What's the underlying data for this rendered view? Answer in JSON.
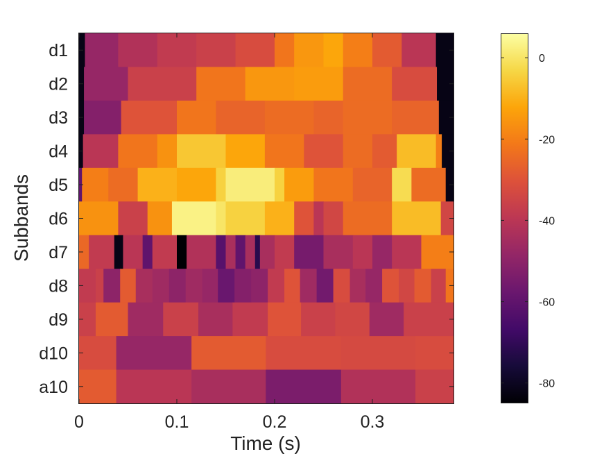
{
  "chart_data": {
    "type": "heatmap",
    "title": "",
    "xlabel": "Time (s)",
    "ylabel": "Subbands",
    "xlim": [
      0,
      0.383
    ],
    "x_ticks": [
      "0",
      "0.1",
      "0.2",
      "0.3"
    ],
    "x_tick_values": [
      0,
      0.1,
      0.2,
      0.3
    ],
    "subbands": [
      "d1",
      "d2",
      "d3",
      "d4",
      "d5",
      "d6",
      "d7",
      "d8",
      "d9",
      "d10",
      "a10"
    ],
    "colorbar": {
      "colormap": "inferno",
      "min": -85,
      "max": 6,
      "ticks": [
        "0",
        "-20",
        "-40",
        "-60",
        "-80"
      ],
      "tick_values": [
        0,
        -20,
        -40,
        -60,
        -80
      ]
    },
    "rows": {
      "d1": {
        "segments": [
          [
            0,
            0.006,
            -82
          ],
          [
            0.006,
            0.04,
            -48
          ],
          [
            0.04,
            0.08,
            -42
          ],
          [
            0.08,
            0.12,
            -38
          ],
          [
            0.12,
            0.16,
            -36
          ],
          [
            0.16,
            0.2,
            -32
          ],
          [
            0.2,
            0.22,
            -22
          ],
          [
            0.22,
            0.25,
            -15
          ],
          [
            0.25,
            0.27,
            -12
          ],
          [
            0.27,
            0.3,
            -20
          ],
          [
            0.3,
            0.33,
            -28
          ],
          [
            0.33,
            0.365,
            -40
          ],
          [
            0.365,
            0.383,
            -82
          ]
        ]
      },
      "d2": {
        "segments": [
          [
            0,
            0.005,
            -82
          ],
          [
            0.005,
            0.05,
            -48
          ],
          [
            0.05,
            0.12,
            -36
          ],
          [
            0.12,
            0.17,
            -22
          ],
          [
            0.17,
            0.22,
            -15
          ],
          [
            0.22,
            0.27,
            -14
          ],
          [
            0.27,
            0.32,
            -24
          ],
          [
            0.32,
            0.366,
            -32
          ],
          [
            0.366,
            0.383,
            -82
          ]
        ]
      },
      "d3": {
        "segments": [
          [
            0,
            0.005,
            -82
          ],
          [
            0.005,
            0.043,
            -52
          ],
          [
            0.043,
            0.1,
            -30
          ],
          [
            0.1,
            0.14,
            -22
          ],
          [
            0.14,
            0.19,
            -26
          ],
          [
            0.19,
            0.24,
            -24
          ],
          [
            0.24,
            0.27,
            -26
          ],
          [
            0.27,
            0.32,
            -24
          ],
          [
            0.32,
            0.368,
            -26
          ],
          [
            0.368,
            0.383,
            -82
          ]
        ]
      },
      "d4": {
        "segments": [
          [
            0,
            0.004,
            -82
          ],
          [
            0.004,
            0.04,
            -40
          ],
          [
            0.04,
            0.08,
            -22
          ],
          [
            0.08,
            0.1,
            -16
          ],
          [
            0.1,
            0.15,
            -6
          ],
          [
            0.15,
            0.19,
            -12
          ],
          [
            0.19,
            0.23,
            -22
          ],
          [
            0.23,
            0.27,
            -30
          ],
          [
            0.27,
            0.3,
            -24
          ],
          [
            0.3,
            0.325,
            -28
          ],
          [
            0.325,
            0.365,
            -8
          ],
          [
            0.365,
            0.371,
            -20
          ],
          [
            0.371,
            0.383,
            -82
          ]
        ]
      },
      "d5": {
        "segments": [
          [
            0,
            0.003,
            -60
          ],
          [
            0.003,
            0.03,
            -20
          ],
          [
            0.03,
            0.06,
            -24
          ],
          [
            0.06,
            0.1,
            -10
          ],
          [
            0.1,
            0.14,
            -12
          ],
          [
            0.14,
            0.15,
            -4
          ],
          [
            0.15,
            0.2,
            2
          ],
          [
            0.2,
            0.21,
            -4
          ],
          [
            0.21,
            0.24,
            -14
          ],
          [
            0.24,
            0.28,
            -22
          ],
          [
            0.28,
            0.32,
            -26
          ],
          [
            0.32,
            0.34,
            -2
          ],
          [
            0.34,
            0.375,
            -24
          ],
          [
            0.375,
            0.383,
            -82
          ]
        ]
      },
      "d6": {
        "segments": [
          [
            0,
            0.04,
            -16
          ],
          [
            0.04,
            0.07,
            -36
          ],
          [
            0.07,
            0.095,
            -16
          ],
          [
            0.095,
            0.14,
            3
          ],
          [
            0.14,
            0.15,
            0
          ],
          [
            0.15,
            0.19,
            -4
          ],
          [
            0.19,
            0.22,
            -10
          ],
          [
            0.22,
            0.24,
            -30
          ],
          [
            0.24,
            0.25,
            -40
          ],
          [
            0.25,
            0.27,
            -34
          ],
          [
            0.27,
            0.32,
            -24
          ],
          [
            0.32,
            0.37,
            -8
          ],
          [
            0.37,
            0.383,
            -34
          ]
        ]
      },
      "d7": {
        "segments": [
          [
            0,
            0.01,
            -25
          ],
          [
            0.01,
            0.036,
            -38
          ],
          [
            0.036,
            0.045,
            -82
          ],
          [
            0.045,
            0.065,
            -40
          ],
          [
            0.065,
            0.075,
            -60
          ],
          [
            0.075,
            0.1,
            -38
          ],
          [
            0.1,
            0.11,
            -85
          ],
          [
            0.11,
            0.14,
            -42
          ],
          [
            0.14,
            0.15,
            -62
          ],
          [
            0.15,
            0.16,
            -44
          ],
          [
            0.16,
            0.17,
            -60
          ],
          [
            0.17,
            0.18,
            -44
          ],
          [
            0.18,
            0.185,
            -72
          ],
          [
            0.185,
            0.2,
            -44
          ],
          [
            0.2,
            0.22,
            -38
          ],
          [
            0.22,
            0.25,
            -55
          ],
          [
            0.25,
            0.28,
            -44
          ],
          [
            0.28,
            0.3,
            -40
          ],
          [
            0.3,
            0.32,
            -48
          ],
          [
            0.32,
            0.35,
            -40
          ],
          [
            0.35,
            0.383,
            -20
          ]
        ]
      },
      "d8": {
        "segments": [
          [
            0,
            0.017,
            -38
          ],
          [
            0.017,
            0.025,
            -36
          ],
          [
            0.025,
            0.042,
            -50
          ],
          [
            0.042,
            0.058,
            -28
          ],
          [
            0.058,
            0.075,
            -44
          ],
          [
            0.075,
            0.092,
            -46
          ],
          [
            0.092,
            0.109,
            -50
          ],
          [
            0.109,
            0.126,
            -46
          ],
          [
            0.126,
            0.142,
            -48
          ],
          [
            0.142,
            0.159,
            -58
          ],
          [
            0.159,
            0.176,
            -52
          ],
          [
            0.176,
            0.193,
            -50
          ],
          [
            0.193,
            0.21,
            -38
          ],
          [
            0.21,
            0.226,
            -30
          ],
          [
            0.226,
            0.243,
            -46
          ],
          [
            0.243,
            0.26,
            -56
          ],
          [
            0.26,
            0.277,
            -32
          ],
          [
            0.277,
            0.293,
            -44
          ],
          [
            0.293,
            0.31,
            -48
          ],
          [
            0.31,
            0.327,
            -30
          ],
          [
            0.327,
            0.343,
            -34
          ],
          [
            0.343,
            0.36,
            -28
          ],
          [
            0.36,
            0.375,
            -36
          ],
          [
            0.375,
            0.383,
            -22
          ]
        ]
      },
      "d9": {
        "segments": [
          [
            0,
            0.017,
            -36
          ],
          [
            0.017,
            0.05,
            -28
          ],
          [
            0.05,
            0.086,
            -46
          ],
          [
            0.086,
            0.122,
            -36
          ],
          [
            0.122,
            0.157,
            -44
          ],
          [
            0.157,
            0.193,
            -38
          ],
          [
            0.193,
            0.227,
            -30
          ],
          [
            0.227,
            0.262,
            -36
          ],
          [
            0.262,
            0.297,
            -34
          ],
          [
            0.297,
            0.332,
            -46
          ],
          [
            0.332,
            0.383,
            -36
          ]
        ]
      },
      "d10": {
        "segments": [
          [
            0,
            0.038,
            -32
          ],
          [
            0.038,
            0.115,
            -48
          ],
          [
            0.115,
            0.191,
            -28
          ],
          [
            0.191,
            0.268,
            -32
          ],
          [
            0.268,
            0.344,
            -33
          ],
          [
            0.344,
            0.383,
            -32
          ]
        ]
      },
      "a10": {
        "segments": [
          [
            0,
            0.038,
            -28
          ],
          [
            0.038,
            0.115,
            -40
          ],
          [
            0.115,
            0.191,
            -44
          ],
          [
            0.191,
            0.268,
            -54
          ],
          [
            0.268,
            0.344,
            -42
          ],
          [
            0.344,
            0.383,
            -36
          ]
        ]
      }
    }
  }
}
